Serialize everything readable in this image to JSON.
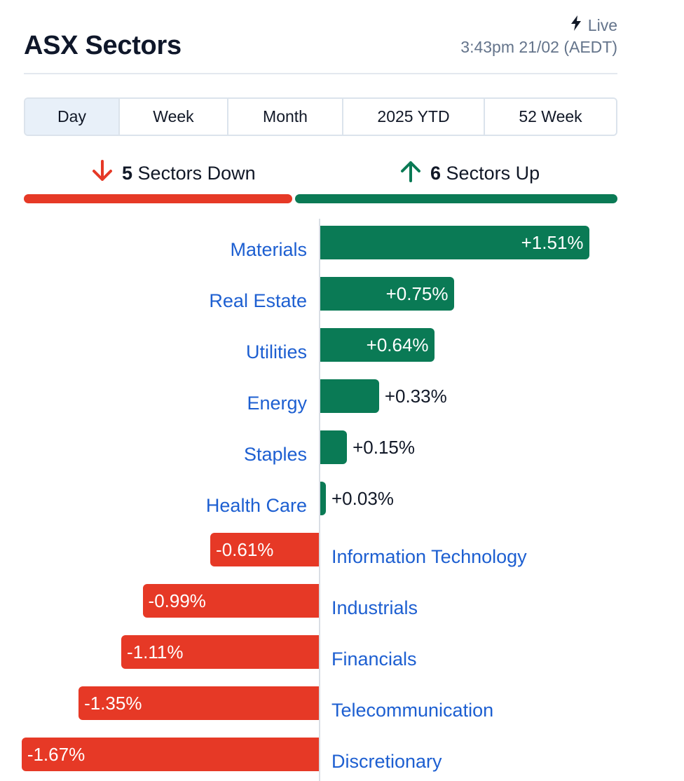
{
  "header": {
    "title": "ASX Sectors",
    "live_label": "Live",
    "timestamp": "3:43pm 21/02 (AEDT)"
  },
  "tabs": [
    {
      "label": "Day",
      "active": true
    },
    {
      "label": "Week",
      "active": false
    },
    {
      "label": "Month",
      "active": false
    },
    {
      "label": "2025 YTD",
      "active": false
    },
    {
      "label": "52 Week",
      "active": false
    }
  ],
  "summary": {
    "down_count": "5",
    "down_label": "Sectors Down",
    "up_count": "6",
    "up_label": "Sectors Up"
  },
  "colors": {
    "positive": "#0a7a55",
    "negative": "#e63926",
    "link": "#1d5fd1"
  },
  "chart_data": {
    "type": "bar",
    "orientation": "horizontal-diverging",
    "categories": [
      "Materials",
      "Real Estate",
      "Utilities",
      "Energy",
      "Staples",
      "Health Care",
      "Information Technology",
      "Industrials",
      "Financials",
      "Telecommunication",
      "Discretionary"
    ],
    "values": [
      1.51,
      0.75,
      0.64,
      0.33,
      0.15,
      0.03,
      -0.61,
      -0.99,
      -1.11,
      -1.35,
      -1.67
    ],
    "value_labels": [
      "+1.51%",
      "+0.75%",
      "+0.64%",
      "+0.33%",
      "+0.15%",
      "+0.03%",
      "-0.61%",
      "-0.99%",
      "-1.11%",
      "-1.35%",
      "-1.67%"
    ],
    "unit": "%",
    "title": "",
    "xlabel": "",
    "ylabel": ""
  }
}
